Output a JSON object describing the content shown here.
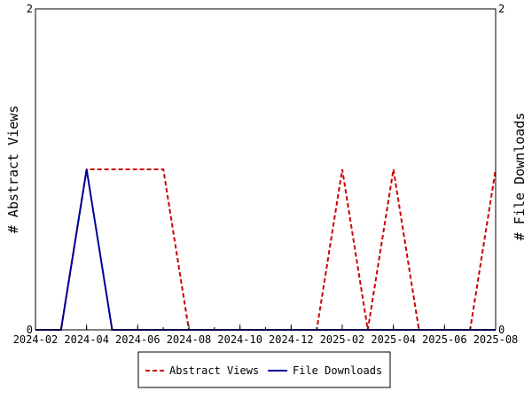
{
  "chart_data": {
    "type": "line",
    "x_ticks": [
      "2024-02",
      "2024-04",
      "2024-06",
      "2024-08",
      "2024-10",
      "2024-12",
      "2025-02",
      "2025-04",
      "2025-06",
      "2025-08"
    ],
    "x": [
      "2024-02",
      "2024-03",
      "2024-04",
      "2024-05",
      "2024-06",
      "2024-07",
      "2024-08",
      "2024-09",
      "2024-10",
      "2024-11",
      "2024-12",
      "2025-01",
      "2025-02",
      "2025-03",
      "2025-04",
      "2025-05",
      "2025-06",
      "2025-07",
      "2025-08"
    ],
    "xlim": [
      "2024-02",
      "2025-08"
    ],
    "ylabel_left": "# Abstract Views",
    "ylabel_right": "# File Downloads",
    "ylim_left": [
      0,
      2
    ],
    "ylim_right": [
      0,
      2
    ],
    "y_ticks_left": [
      "0",
      "2"
    ],
    "y_ticks_right": [
      "0",
      "2"
    ],
    "legend_position": "bottom",
    "grid": false,
    "series": [
      {
        "name": "Abstract Views",
        "axis": "left",
        "color": "#cc0000",
        "style": "dashed",
        "values": [
          0,
          0,
          1,
          1,
          1,
          1,
          0,
          0,
          0,
          0,
          0,
          0,
          1,
          0,
          1,
          0,
          0,
          0,
          1
        ]
      },
      {
        "name": "File Downloads",
        "axis": "right",
        "color": "#000099",
        "style": "solid",
        "values": [
          0,
          0,
          1,
          0,
          0,
          0,
          0,
          0,
          0,
          0,
          0,
          0,
          0,
          0,
          0,
          0,
          0,
          0,
          0
        ]
      }
    ]
  }
}
